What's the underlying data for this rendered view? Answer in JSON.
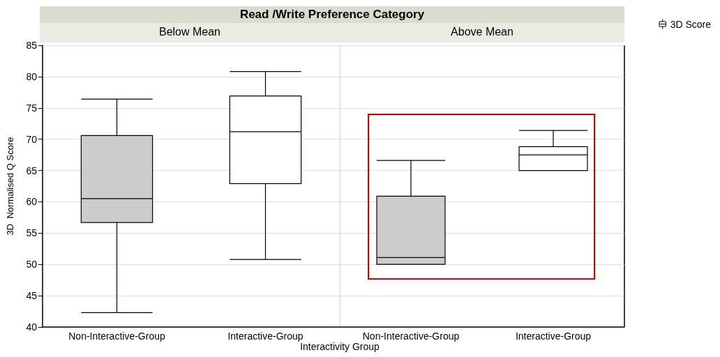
{
  "chart_data": [
    {
      "type": "box",
      "title": "Read /Write Preference Category",
      "subtitle": "Below Mean",
      "xlabel": "Interactivity Group",
      "ylabel": "3D  Normalised Q Score",
      "categories": [
        "Non-Interactive-Group",
        "Interactive-Group"
      ],
      "ylim": [
        40,
        85
      ],
      "yticks": [
        40,
        45,
        50,
        55,
        60,
        65,
        70,
        75,
        80,
        85
      ],
      "grid": "y",
      "series": [
        {
          "colors": [
            "#cccccc",
            "#ffffff"
          ],
          "boxes": [
            {
              "low": 42.3,
              "q1": 56.7,
              "median": 60.5,
              "q3": 70.6,
              "high": 76.4
            },
            {
              "low": 50.8,
              "q1": 62.9,
              "median": 71.2,
              "q3": 76.9,
              "high": 80.8
            }
          ]
        }
      ]
    },
    {
      "type": "box",
      "subtitle": "Above Mean",
      "categories": [
        "Non-Interactive-Group",
        "Interactive-Group"
      ],
      "ylim": [
        40,
        85
      ],
      "yticks": [
        40,
        45,
        50,
        55,
        60,
        65,
        70,
        75,
        80,
        85
      ],
      "grid": "y",
      "tick_labels": "x",
      "legend": "top right",
      "series": [
        {
          "name": "3D Score",
          "colors": [
            "#cccccc",
            "#ffffff"
          ],
          "boxes": [
            {
              "low": 50,
              "q1": 50,
              "median": 51.1,
              "q3": 60.9,
              "high": 66.6
            },
            {
              "low": 65,
              "q1": 65,
              "median": 67.5,
              "q3": 68.8,
              "high": 71.4
            }
          ]
        }
      ]
    }
  ]
}
